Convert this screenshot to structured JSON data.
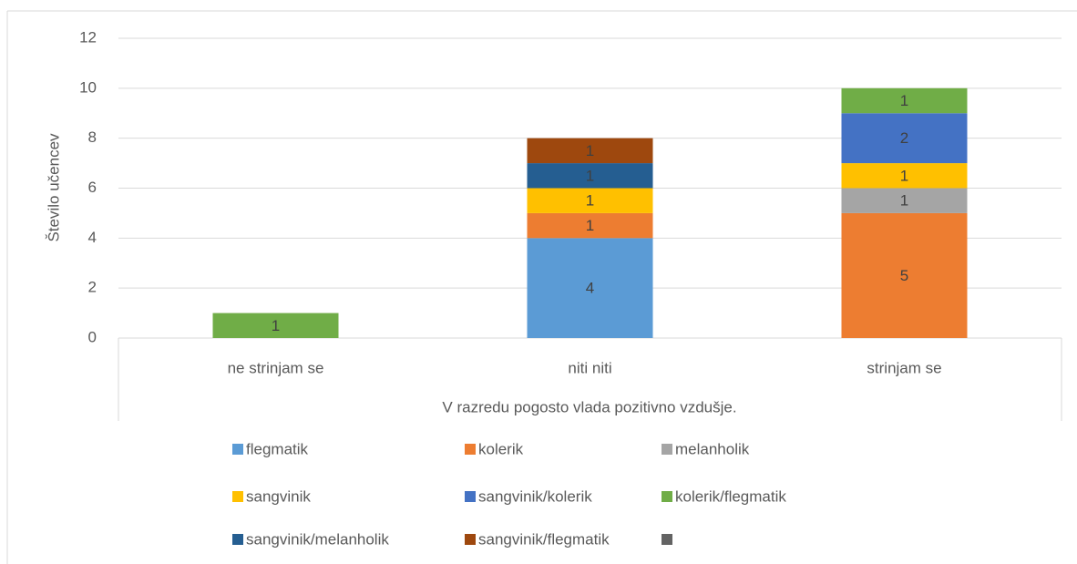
{
  "chart_data": {
    "type": "stacked_bar",
    "x_label": "V razredu pogosto vlada pozitivno vzdušje.",
    "y_label": "Število učencev",
    "categories": [
      "ne strinjam se",
      "niti niti",
      "strinjam se"
    ],
    "series": [
      {
        "name": "flegmatik",
        "color": "#5b9bd5",
        "values": [
          null,
          4,
          null
        ]
      },
      {
        "name": "kolerik",
        "color": "#ed7d31",
        "values": [
          null,
          1,
          5
        ]
      },
      {
        "name": "melanholik",
        "color": "#a5a5a5",
        "values": [
          null,
          null,
          1
        ]
      },
      {
        "name": "sangvinik",
        "color": "#ffc000",
        "values": [
          null,
          1,
          1
        ]
      },
      {
        "name": "sangvinik/kolerik",
        "color": "#4472c4",
        "values": [
          null,
          null,
          2
        ]
      },
      {
        "name": "kolerik/flegmatik",
        "color": "#70ad47",
        "values": [
          1,
          null,
          1
        ]
      },
      {
        "name": "sangvinik/melanholik",
        "color": "#255e91",
        "values": [
          null,
          1,
          null
        ]
      },
      {
        "name": "sangvinik/flegmatik",
        "color": "#9e480e",
        "values": [
          null,
          1,
          null
        ]
      },
      {
        "color": "#636363",
        "values": [
          null,
          null,
          null
        ]
      }
    ],
    "ylim": [
      0,
      12
    ],
    "yticks": [
      0,
      2,
      4,
      6,
      8,
      10,
      12
    ],
    "grid": true
  }
}
